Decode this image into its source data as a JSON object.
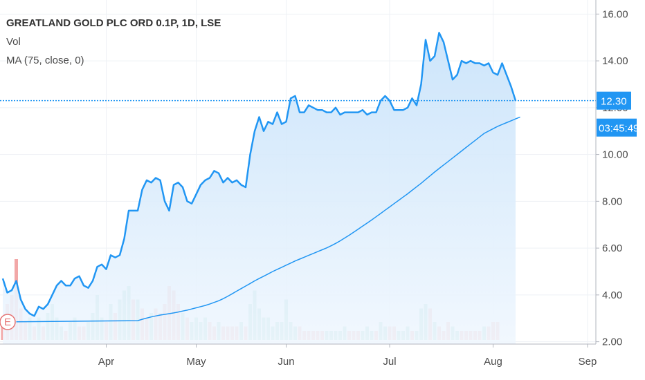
{
  "legend": {
    "title": "GREATLAND GOLD PLC ORD 0.1P, 1D, LSE",
    "vol": "Vol",
    "ma": "MA (75, close, 0)"
  },
  "price_tag": {
    "value": "12.30",
    "countdown": "03:45:49"
  },
  "earnings_marker": "E",
  "colors": {
    "price_line": "#2196f3",
    "area_top": "#c7e2fa",
    "area_bottom": "#f0f7fe",
    "ma_line": "#2196f3",
    "vol_up": "#8ed0c2",
    "vol_down": "#f2a7a7",
    "grid": "#eef1f5",
    "price_tag_bg": "#2196f3",
    "earnings_red": "#e57373"
  },
  "chart_data": {
    "type": "area",
    "title": "GREATLAND GOLD PLC ORD 0.1P, 1D, LSE",
    "y_ticks": [
      "2.00",
      "4.00",
      "6.00",
      "8.00",
      "10.00",
      "12.00",
      "14.00",
      "16.00"
    ],
    "ylim": [
      1.9,
      16.6
    ],
    "x_ticks": [
      {
        "label": "Apr",
        "index": 23
      },
      {
        "label": "May",
        "index": 43
      },
      {
        "label": "Jun",
        "index": 63
      },
      {
        "label": "Jul",
        "index": 86
      },
      {
        "label": "Aug",
        "index": 109
      },
      {
        "label": "Sep",
        "index": 130
      }
    ],
    "x_count": 131,
    "close": [
      4.7,
      4.1,
      4.2,
      4.6,
      3.8,
      3.4,
      3.2,
      3.1,
      3.5,
      3.4,
      3.6,
      4.0,
      4.4,
      4.6,
      4.4,
      4.4,
      4.7,
      4.8,
      4.4,
      4.3,
      4.6,
      5.2,
      5.3,
      5.1,
      5.7,
      5.6,
      5.7,
      6.4,
      7.6,
      7.6,
      7.6,
      8.5,
      8.9,
      8.8,
      9.0,
      8.9,
      8.0,
      7.6,
      8.7,
      8.8,
      8.6,
      8.0,
      7.9,
      8.3,
      8.7,
      8.9,
      9.0,
      9.3,
      9.2,
      8.8,
      9.0,
      8.8,
      8.9,
      8.7,
      8.6,
      10.0,
      11.0,
      11.6,
      11.0,
      11.4,
      11.3,
      11.8,
      11.3,
      11.4,
      12.4,
      12.5,
      11.8,
      11.8,
      12.1,
      12.0,
      11.9,
      11.9,
      11.8,
      11.8,
      12.0,
      11.7,
      11.8,
      11.8,
      11.8,
      11.8,
      11.9,
      11.7,
      11.8,
      11.8,
      12.3,
      12.5,
      12.3,
      11.9,
      11.9,
      11.9,
      12.0,
      12.4,
      12.1,
      13.0,
      14.9,
      14.0,
      14.2,
      15.2,
      14.8,
      14.0,
      13.2,
      13.4,
      14.0,
      13.9,
      14.0,
      13.9,
      13.9,
      13.8,
      13.9,
      13.5,
      13.4,
      13.9,
      13.4,
      12.9,
      12.3
    ],
    "ma75": [
      2.9,
      2.96,
      3.01,
      3.06,
      3.1,
      3.14,
      3.17,
      3.2,
      3.23,
      3.27,
      3.31,
      3.35,
      3.4,
      3.45,
      3.5,
      3.55,
      3.61,
      3.68,
      3.75,
      3.84,
      3.94,
      4.05,
      4.16,
      4.27,
      4.38,
      4.49,
      4.6,
      4.7,
      4.8,
      4.9,
      5.0,
      5.09,
      5.18,
      5.27,
      5.36,
      5.45,
      5.53,
      5.61,
      5.69,
      5.77,
      5.85,
      5.93,
      6.01,
      6.1,
      6.2,
      6.31,
      6.43,
      6.55,
      6.68,
      6.81,
      6.94,
      7.07,
      7.2,
      7.34,
      7.48,
      7.62,
      7.76,
      7.9,
      8.04,
      8.18,
      8.32,
      8.47,
      8.62,
      8.77,
      8.93,
      9.09,
      9.25,
      9.4,
      9.55,
      9.7,
      9.85,
      10.0,
      10.15,
      10.3,
      10.45,
      10.6,
      10.75,
      10.9,
      11.0,
      11.1,
      11.2,
      11.28,
      11.36,
      11.44,
      11.52,
      11.6
    ],
    "ma_start_index": 30,
    "volume": [
      {
        "v": 0.15,
        "up": false
      },
      {
        "v": 0.4,
        "up": false
      },
      {
        "v": 0.5,
        "up": false
      },
      {
        "v": 0.9,
        "up": false
      },
      {
        "v": 0.35,
        "up": false
      },
      {
        "v": 0.2,
        "up": false
      },
      {
        "v": 0.25,
        "up": true
      },
      {
        "v": 0.15,
        "up": false
      },
      {
        "v": 0.25,
        "up": true
      },
      {
        "v": 0.15,
        "up": false
      },
      {
        "v": 0.3,
        "up": true
      },
      {
        "v": 0.4,
        "up": true
      },
      {
        "v": 0.25,
        "up": true
      },
      {
        "v": 0.15,
        "up": true
      },
      {
        "v": 0.1,
        "up": false
      },
      {
        "v": 0.2,
        "up": true
      },
      {
        "v": 0.25,
        "up": true
      },
      {
        "v": 0.15,
        "up": false
      },
      {
        "v": 0.15,
        "up": false
      },
      {
        "v": 0.2,
        "up": true
      },
      {
        "v": 0.3,
        "up": true
      },
      {
        "v": 0.5,
        "up": true
      },
      {
        "v": 0.25,
        "up": true
      },
      {
        "v": 0.2,
        "up": false
      },
      {
        "v": 0.4,
        "up": true
      },
      {
        "v": 0.3,
        "up": false
      },
      {
        "v": 0.45,
        "up": true
      },
      {
        "v": 0.55,
        "up": true
      },
      {
        "v": 0.6,
        "up": true
      },
      {
        "v": 0.45,
        "up": false
      },
      {
        "v": 0.45,
        "up": true
      },
      {
        "v": 0.35,
        "up": false
      },
      {
        "v": 0.25,
        "up": false
      },
      {
        "v": 0.3,
        "up": true
      },
      {
        "v": 0.35,
        "up": false
      },
      {
        "v": 0.3,
        "up": false
      },
      {
        "v": 0.4,
        "up": false
      },
      {
        "v": 0.6,
        "up": false
      },
      {
        "v": 0.55,
        "up": false
      },
      {
        "v": 0.4,
        "up": false
      },
      {
        "v": 0.3,
        "up": true
      },
      {
        "v": 0.25,
        "up": false
      },
      {
        "v": 0.2,
        "up": true
      },
      {
        "v": 0.25,
        "up": true
      },
      {
        "v": 0.2,
        "up": true
      },
      {
        "v": 0.25,
        "up": true
      },
      {
        "v": 0.2,
        "up": false
      },
      {
        "v": 0.15,
        "up": false
      },
      {
        "v": 0.2,
        "up": true
      },
      {
        "v": 0.15,
        "up": false
      },
      {
        "v": 0.15,
        "up": false
      },
      {
        "v": 0.15,
        "up": false
      },
      {
        "v": 0.15,
        "up": false
      },
      {
        "v": 0.2,
        "up": true
      },
      {
        "v": 0.15,
        "up": false
      },
      {
        "v": 0.4,
        "up": true
      },
      {
        "v": 0.55,
        "up": true
      },
      {
        "v": 0.35,
        "up": true
      },
      {
        "v": 0.25,
        "up": true
      },
      {
        "v": 0.25,
        "up": true
      },
      {
        "v": 0.15,
        "up": true
      },
      {
        "v": 0.2,
        "up": true
      },
      {
        "v": 0.2,
        "up": true
      },
      {
        "v": 0.45,
        "up": true
      },
      {
        "v": 0.2,
        "up": true
      },
      {
        "v": 0.15,
        "up": true
      },
      {
        "v": 0.15,
        "up": false
      },
      {
        "v": 0.1,
        "up": false
      },
      {
        "v": 0.1,
        "up": false
      },
      {
        "v": 0.1,
        "up": false
      },
      {
        "v": 0.1,
        "up": false
      },
      {
        "v": 0.1,
        "up": false
      },
      {
        "v": 0.1,
        "up": true
      },
      {
        "v": 0.1,
        "up": true
      },
      {
        "v": 0.1,
        "up": true
      },
      {
        "v": 0.1,
        "up": true
      },
      {
        "v": 0.15,
        "up": true
      },
      {
        "v": 0.1,
        "up": false
      },
      {
        "v": 0.1,
        "up": false
      },
      {
        "v": 0.1,
        "up": false
      },
      {
        "v": 0.1,
        "up": true
      },
      {
        "v": 0.15,
        "up": true
      },
      {
        "v": 0.1,
        "up": true
      },
      {
        "v": 0.1,
        "up": false
      },
      {
        "v": 0.2,
        "up": true
      },
      {
        "v": 0.15,
        "up": true
      },
      {
        "v": 0.15,
        "up": false
      },
      {
        "v": 0.15,
        "up": false
      },
      {
        "v": 0.1,
        "up": true
      },
      {
        "v": 0.1,
        "up": true
      },
      {
        "v": 0.15,
        "up": true
      },
      {
        "v": 0.1,
        "up": false
      },
      {
        "v": 0.1,
        "up": true
      },
      {
        "v": 0.35,
        "up": true
      },
      {
        "v": 0.4,
        "up": true
      },
      {
        "v": 0.35,
        "up": false
      },
      {
        "v": 0.2,
        "up": true
      },
      {
        "v": 0.15,
        "up": false
      },
      {
        "v": 0.1,
        "up": false
      },
      {
        "v": 0.2,
        "up": false
      },
      {
        "v": 0.15,
        "up": true
      },
      {
        "v": 0.1,
        "up": true
      },
      {
        "v": 0.1,
        "up": false
      },
      {
        "v": 0.1,
        "up": false
      },
      {
        "v": 0.1,
        "up": false
      },
      {
        "v": 0.1,
        "up": false
      },
      {
        "v": 0.1,
        "up": false
      },
      {
        "v": 0.15,
        "up": true
      },
      {
        "v": 0.15,
        "up": false
      },
      {
        "v": 0.2,
        "up": false
      },
      {
        "v": 0.2,
        "up": false
      }
    ]
  }
}
